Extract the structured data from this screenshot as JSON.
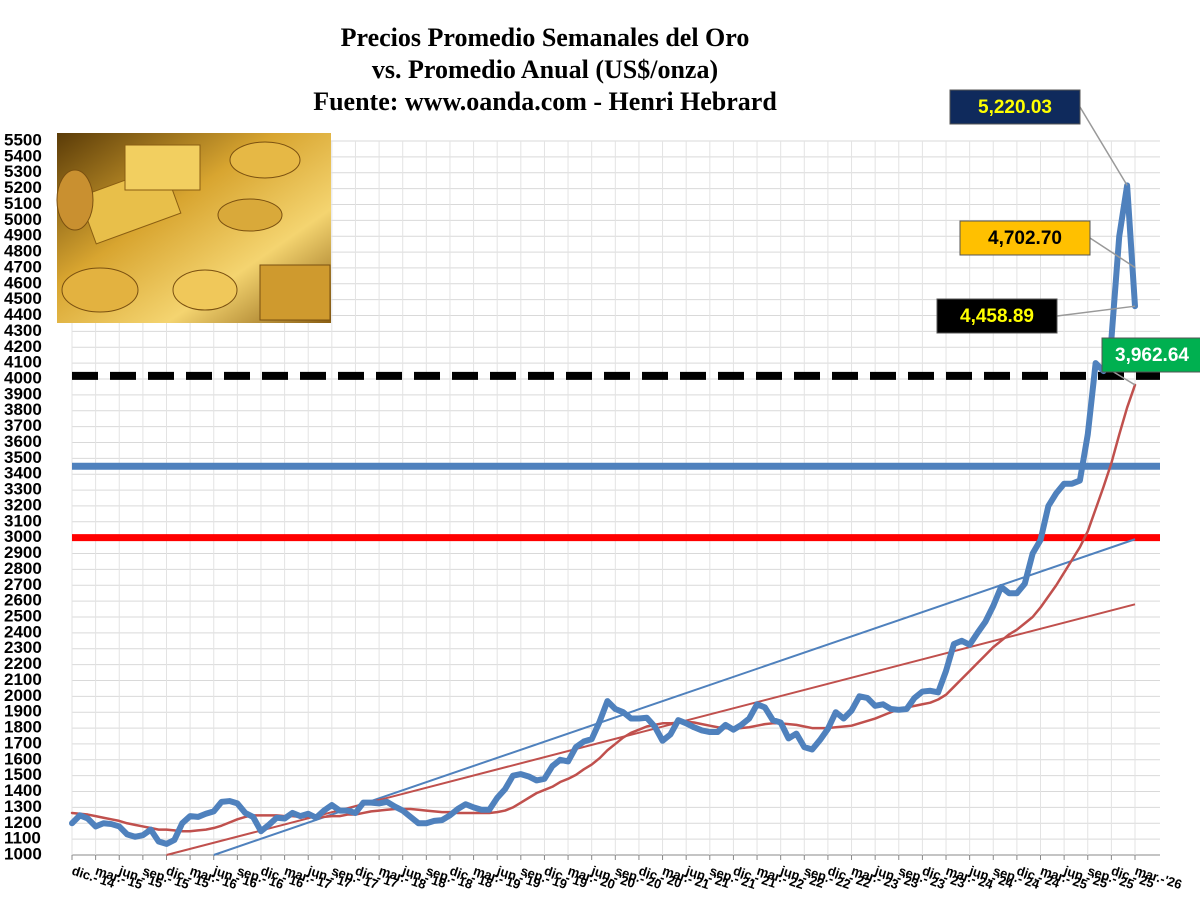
{
  "chart_data": {
    "type": "line",
    "title": [
      "Precios Promedio Semanales del Oro",
      "vs. Promedio Anual (US$/onza)",
      "Fuente: www.oanda.com - Henri Hebrard"
    ],
    "categories": [
      "dic.-'14",
      null,
      null,
      "mar.-'15",
      null,
      null,
      "jun.-'15",
      null,
      null,
      "sep.-'15",
      null,
      null,
      "dic.-'15",
      null,
      null,
      "mar.-'16",
      null,
      null,
      "jun.-'16",
      null,
      null,
      "sep.-'16",
      null,
      null,
      "dic.-'16",
      null,
      null,
      "mar.-'17",
      null,
      null,
      "jun.-'17",
      null,
      null,
      "sep.-'17",
      null,
      null,
      "dic.-'17",
      null,
      null,
      "mar.-'18",
      null,
      null,
      "jun.-'18",
      null,
      null,
      "sep.-'18",
      null,
      null,
      "dic.-'18",
      null,
      null,
      "mar.-'19",
      null,
      null,
      "jun.-'19",
      null,
      null,
      "sep.-'19",
      null,
      null,
      "dic.-'19",
      null,
      null,
      "mar.-'20",
      null,
      null,
      "jun.-'20",
      null,
      null,
      "sep.-'20",
      null,
      null,
      "dic.-'20",
      null,
      null,
      "mar.-'21",
      null,
      null,
      "jun.-'21",
      null,
      null,
      "sep.-'21",
      null,
      null,
      "dic.-'21",
      null,
      null,
      "mar.-'22",
      null,
      null,
      "jun.-'22",
      null,
      null,
      "sep.-'22",
      null,
      null,
      "dic.-'22",
      null,
      null,
      "mar.-'23",
      null,
      null,
      "jun.-'23",
      null,
      null,
      "sep.-'23",
      null,
      null,
      "dic.-'23",
      null,
      null,
      "mar.-'24",
      null,
      null,
      "jun.-'24",
      null,
      null,
      "sep.-'24",
      null,
      null,
      "dic.-'24",
      null,
      null,
      "mar.-'25",
      null,
      null,
      "jun.-'25",
      null,
      null,
      "sep.-'25",
      null,
      null,
      "dic.-'25",
      null,
      null,
      "mar.-'26"
    ],
    "series": [
      {
        "color": "#4f81bd",
        "width": 6,
        "values": [
          1200,
          1250,
          1230,
          1180,
          1200,
          1195,
          1180,
          1130,
          1115,
          1125,
          1160,
          1085,
          1070,
          1095,
          1200,
          1245,
          1240,
          1260,
          1275,
          1335,
          1340,
          1325,
          1265,
          1240,
          1150,
          1190,
          1235,
          1230,
          1265,
          1245,
          1260,
          1235,
          1280,
          1315,
          1280,
          1280,
          1265,
          1330,
          1330,
          1325,
          1335,
          1305,
          1280,
          1240,
          1200,
          1200,
          1215,
          1220,
          1250,
          1290,
          1320,
          1300,
          1285,
          1285,
          1360,
          1415,
          1500,
          1510,
          1495,
          1470,
          1480,
          1560,
          1600,
          1590,
          1680,
          1715,
          1730,
          1840,
          1970,
          1920,
          1900,
          1860,
          1860,
          1865,
          1810,
          1720,
          1760,
          1850,
          1830,
          1805,
          1785,
          1775,
          1775,
          1820,
          1790,
          1820,
          1860,
          1950,
          1930,
          1850,
          1835,
          1735,
          1765,
          1680,
          1665,
          1725,
          1795,
          1900,
          1860,
          1910,
          2000,
          1990,
          1940,
          1950,
          1920,
          1915,
          1920,
          1990,
          2030,
          2035,
          2025,
          2160,
          2330,
          2350,
          2325,
          2400,
          2470,
          2570,
          2690,
          2650,
          2650,
          2710,
          2900,
          2985,
          3200,
          3280,
          3340,
          3340,
          3360,
          3650,
          4100,
          4050,
          4250,
          4900,
          5220.03,
          4458.89
        ]
      },
      {
        "color": "#c0504d",
        "width": 2.5,
        "values": [
          1265,
          1260,
          1255,
          1245,
          1235,
          1225,
          1215,
          1200,
          1190,
          1180,
          1170,
          1160,
          1160,
          1155,
          1150,
          1150,
          1155,
          1160,
          1170,
          1185,
          1205,
          1225,
          1240,
          1250,
          1250,
          1250,
          1250,
          1245,
          1245,
          1240,
          1240,
          1235,
          1240,
          1245,
          1245,
          1255,
          1255,
          1265,
          1275,
          1280,
          1285,
          1290,
          1290,
          1290,
          1285,
          1280,
          1275,
          1270,
          1270,
          1265,
          1265,
          1265,
          1265,
          1265,
          1270,
          1280,
          1300,
          1330,
          1360,
          1390,
          1410,
          1430,
          1460,
          1480,
          1505,
          1540,
          1570,
          1610,
          1660,
          1700,
          1740,
          1770,
          1790,
          1810,
          1820,
          1830,
          1830,
          1835,
          1840,
          1835,
          1825,
          1815,
          1805,
          1800,
          1800,
          1800,
          1805,
          1815,
          1825,
          1830,
          1830,
          1825,
          1820,
          1810,
          1800,
          1800,
          1800,
          1805,
          1810,
          1815,
          1830,
          1845,
          1860,
          1880,
          1900,
          1920,
          1930,
          1940,
          1950,
          1960,
          1980,
          2010,
          2060,
          2110,
          2160,
          2210,
          2260,
          2310,
          2350,
          2390,
          2420,
          2460,
          2500,
          2560,
          2630,
          2700,
          2780,
          2860,
          2940,
          3040,
          3180,
          3320,
          3470,
          3650,
          3820,
          3962.64
        ]
      }
    ],
    "trend_lines": [
      {
        "color": "#4f81bd",
        "x": [
          18,
          135
        ],
        "values": [
          1000,
          2990
        ]
      },
      {
        "color": "#c0504d",
        "x": [
          12,
          135
        ],
        "values": [
          1000,
          2580
        ]
      }
    ],
    "reference_lines": [
      {
        "value": 4020,
        "color": "#000000",
        "dashed": true
      },
      {
        "value": 3450,
        "color": "#4f81bd",
        "dashed": false
      },
      {
        "value": 3000,
        "color": "#ff0000",
        "dashed": false
      }
    ],
    "annotations": [
      {
        "label": "5,220.03",
        "value": 5220.03,
        "x": 134,
        "background": "#0f2a5c",
        "color": "#ffff00"
      },
      {
        "label": "4,702.70",
        "value": 4702.7,
        "x": 135,
        "background": "#ffc000",
        "color": "#000000"
      },
      {
        "label": "4,458.89",
        "value": 4458.89,
        "x": 135,
        "background": "#000000",
        "color": "#ffff00"
      },
      {
        "label": "3,962.64",
        "value": 3962.64,
        "x": 135,
        "background": "#00b050",
        "color": "#ffffff"
      }
    ],
    "ylim": [
      1000,
      5500
    ],
    "yticks": [
      1000,
      1100,
      1200,
      1300,
      1400,
      1500,
      1600,
      1700,
      1800,
      1900,
      2000,
      2100,
      2200,
      2300,
      2400,
      2500,
      2600,
      2700,
      2800,
      2900,
      3000,
      3100,
      3200,
      3300,
      3400,
      3500,
      3600,
      3700,
      3800,
      3900,
      4000,
      4100,
      4200,
      4300,
      4400,
      4500,
      4600,
      4700,
      4800,
      4900,
      5000,
      5100,
      5200,
      5300,
      5400,
      5500
    ],
    "grid": true
  }
}
